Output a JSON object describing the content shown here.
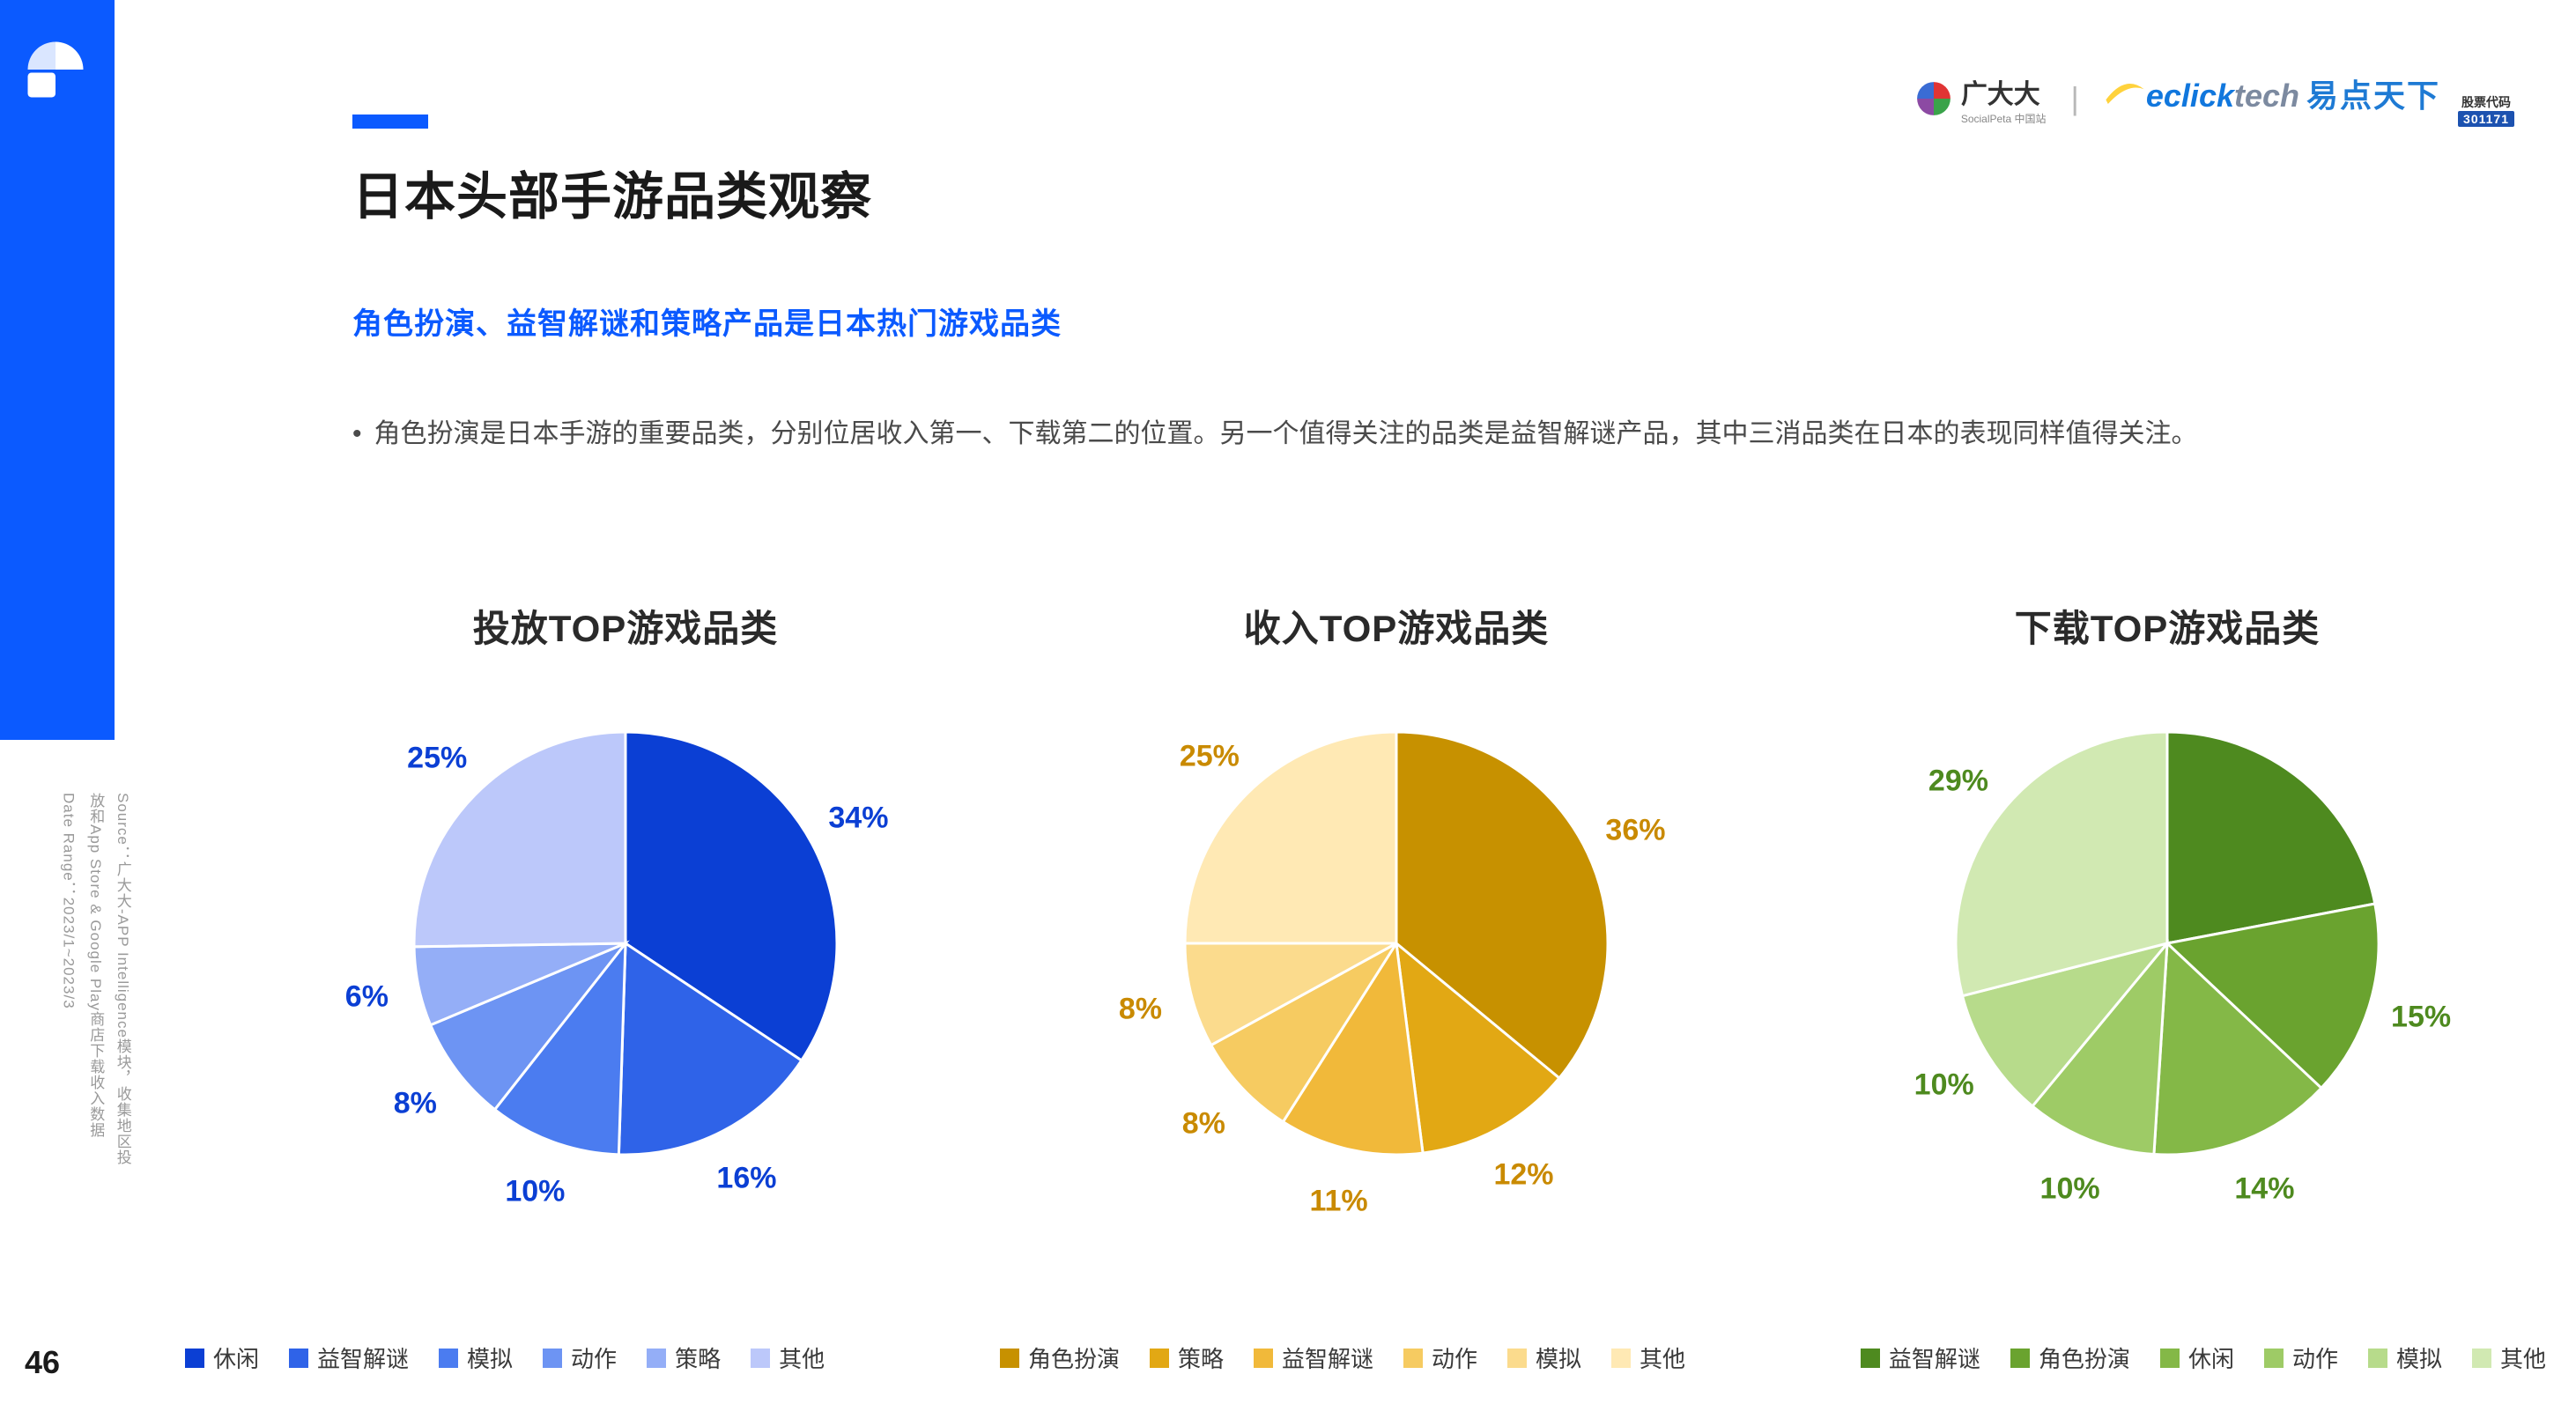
{
  "page_number": "46",
  "accent_color": "#0b5aff",
  "background_color": "#ffffff",
  "title": "日本头部手游品类观察",
  "subtitle": "角色扮演、益智解谜和策略产品是日本热门游戏品类",
  "description": "角色扮演是日本手游的重要品类，分别位居收入第一、下载第二的位置。另一个值得关注的品类是益智解谜产品，其中三消品类在日本的表现同样值得关注。",
  "source_lines": [
    "Source：广大大-APP Intelligence模块，收集地区投",
    "放和App Store & Google Play商店下载收入数据",
    "Date Range：2023/1~2023/3"
  ],
  "branding": {
    "sp_name": "广大大",
    "sp_sub": "SocialPeta 中国站",
    "ec_a": "eclick",
    "ec_b": "tech",
    "ec_c": "易点天下",
    "stock_label": "股票代码",
    "stock_num": "301171"
  },
  "charts": [
    {
      "title": "投放TOP游戏品类",
      "label_color": "#0b3fd4",
      "slices": [
        {
          "label": "休闲",
          "value": 34,
          "color": "#0b3fd4",
          "show_pct": "34%"
        },
        {
          "label": "益智解谜",
          "value": 16,
          "color": "#2f63e8",
          "show_pct": "16%"
        },
        {
          "label": "模拟",
          "value": 10,
          "color": "#4b7cf0",
          "show_pct": "10%"
        },
        {
          "label": "动作",
          "value": 8,
          "color": "#6d94f3",
          "show_pct": "8%"
        },
        {
          "label": "策略",
          "value": 6,
          "color": "#94aef7",
          "show_pct": "6%"
        },
        {
          "label": "其他",
          "value": 25,
          "color": "#bcc8fa",
          "show_pct": "25%"
        }
      ]
    },
    {
      "title": "收入TOP游戏品类",
      "label_color": "#c98a00",
      "slices": [
        {
          "label": "角色扮演",
          "value": 36,
          "color": "#c79100",
          "show_pct": "36%"
        },
        {
          "label": "策略",
          "value": 12,
          "color": "#e2a814",
          "show_pct": "12%"
        },
        {
          "label": "益智解谜",
          "value": 11,
          "color": "#f1b93a",
          "show_pct": "11%"
        },
        {
          "label": "动作",
          "value": 8,
          "color": "#f6cb61",
          "show_pct": "8%"
        },
        {
          "label": "模拟",
          "value": 8,
          "color": "#fbdb8d",
          "show_pct": "8%"
        },
        {
          "label": "其他",
          "value": 25,
          "color": "#ffe9b4",
          "show_pct": "25%"
        }
      ]
    },
    {
      "title": "下载TOP游戏品类",
      "label_color": "#4e8a1f",
      "slices": [
        {
          "label": "益智解谜",
          "value": 22,
          "color": "#4e8a1f",
          "show_pct": null
        },
        {
          "label": "角色扮演",
          "value": 15,
          "color": "#6aa32f",
          "show_pct": "15%"
        },
        {
          "label": "休闲",
          "value": 14,
          "color": "#84b847",
          "show_pct": "14%"
        },
        {
          "label": "动作",
          "value": 10,
          "color": "#9ecb66",
          "show_pct": "10%"
        },
        {
          "label": "模拟",
          "value": 10,
          "color": "#b7db8b",
          "show_pct": "10%"
        },
        {
          "label": "其他",
          "value": 29,
          "color": "#d1e9b2",
          "show_pct": "29%"
        }
      ]
    }
  ],
  "pie": {
    "radius": 240,
    "label_radius": 300,
    "start_angle_deg": -90,
    "title_fontsize": 42,
    "label_fontsize": 34
  }
}
